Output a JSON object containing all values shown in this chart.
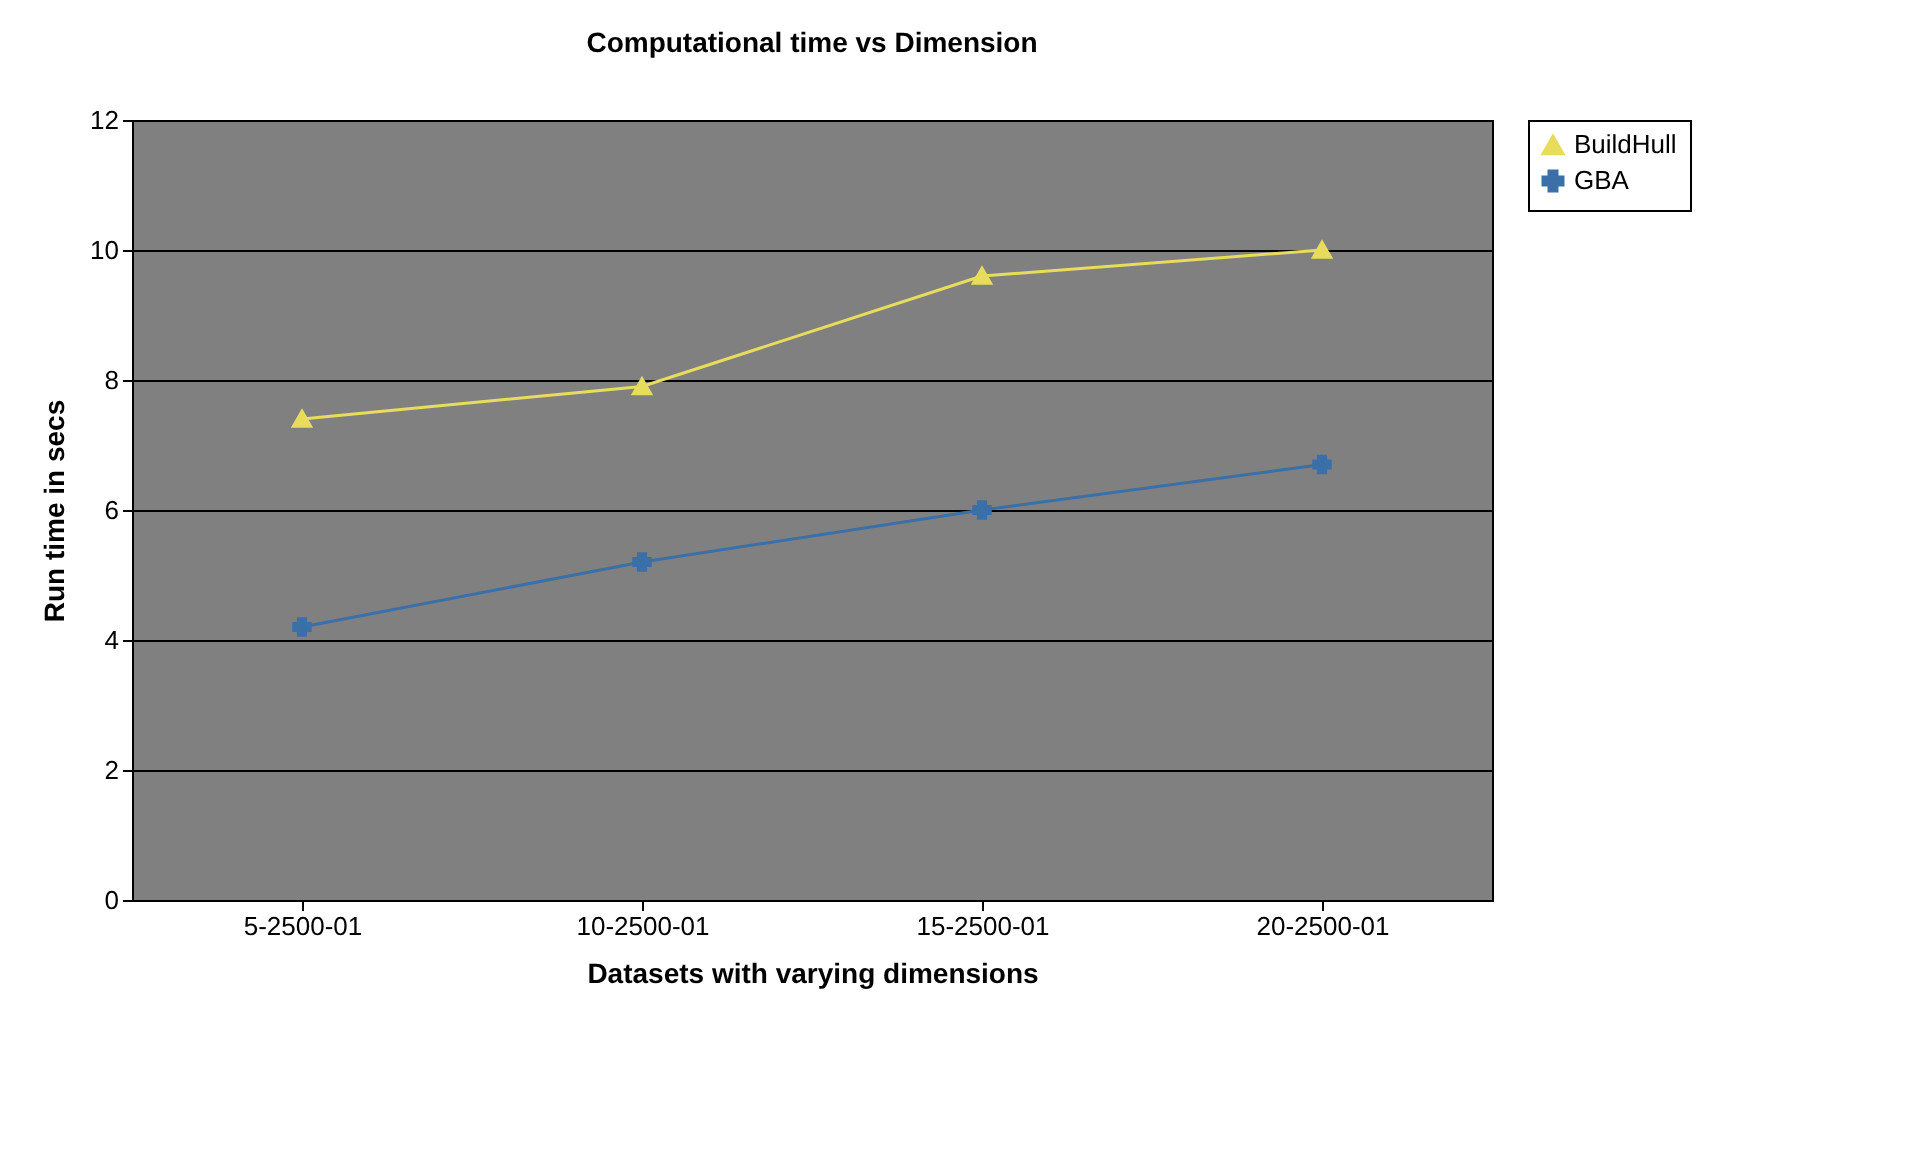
{
  "chart_data": {
    "type": "line",
    "title": "Computational time vs Dimension",
    "xlabel": "Datasets with varying dimensions",
    "ylabel": "Run time in secs",
    "categories": [
      "5-2500-01",
      "10-2500-01",
      "15-2500-01",
      "20-2500-01"
    ],
    "series": [
      {
        "name": "BuildHull",
        "color": "#e8dc5c",
        "marker": "triangle",
        "values": [
          7.4,
          7.9,
          9.6,
          10.0
        ]
      },
      {
        "name": "GBA",
        "color": "#3a6fa8",
        "marker": "cross",
        "values": [
          4.2,
          5.2,
          6.0,
          6.7
        ]
      }
    ],
    "ylim": [
      0,
      12
    ],
    "yticks": [
      0,
      2,
      4,
      6,
      8,
      10,
      12
    ],
    "grid": "y",
    "legend": "right",
    "line_style": "solid"
  }
}
